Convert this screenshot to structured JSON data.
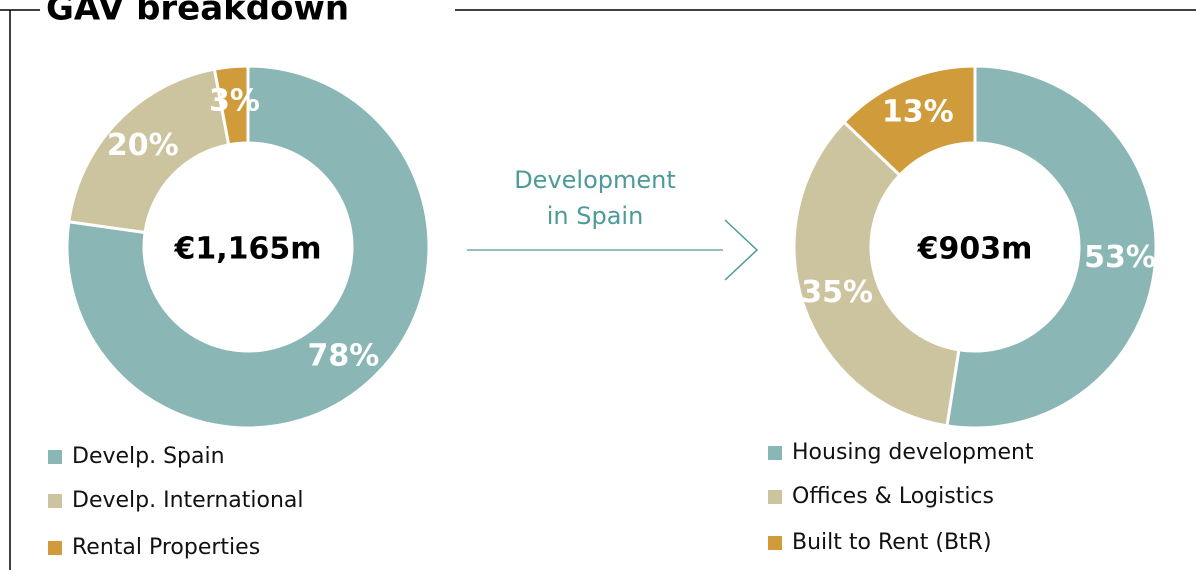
{
  "title": "GAV breakdown",
  "annotation": "Development in Spain",
  "chart_data": [
    {
      "type": "pie",
      "center_label": "€1,165m",
      "categories": [
        "Develp. Spain",
        "Develp. International",
        "Rental Properties"
      ],
      "values": [
        78,
        20,
        3
      ],
      "value_labels": [
        "78%",
        "20%",
        "3%"
      ],
      "colors": [
        "#8ab6b6",
        "#ccc49e",
        "#d09b3a"
      ]
    },
    {
      "type": "pie",
      "center_label": "€903m",
      "categories": [
        "Housing development",
        "Offices & Logistics",
        "Built to Rent (BtR)"
      ],
      "values": [
        53,
        35,
        13
      ],
      "value_labels": [
        "53%",
        "35%",
        "13%"
      ],
      "colors": [
        "#8ab6b6",
        "#ccc49e",
        "#d09b3a"
      ]
    }
  ]
}
